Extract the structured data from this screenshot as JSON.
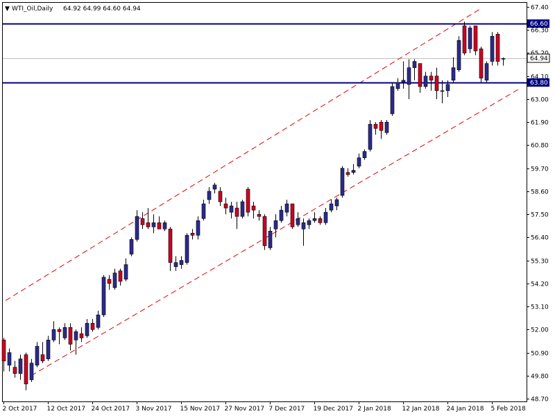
{
  "chart_data": {
    "type": "candlestick",
    "header": {
      "symbol": "WTI_Oil,Daily",
      "ohlc": "64.92 64.99 64.60 64.94"
    },
    "y_ticks": [
      "67.40",
      "66.30",
      "65.20",
      "64.10",
      "63.00",
      "61.90",
      "60.80",
      "59.70",
      "58.60",
      "57.50",
      "56.40",
      "55.30",
      "54.20",
      "53.10",
      "52.00",
      "50.90",
      "49.80",
      "48.70"
    ],
    "y_range": [
      48.7,
      67.4
    ],
    "x_ticks": [
      {
        "label": "2 Oct 2017",
        "bar": 0
      },
      {
        "label": "12 Oct 2017",
        "bar": 8
      },
      {
        "label": "24 Oct 2017",
        "bar": 16
      },
      {
        "label": "3 Nov 2017",
        "bar": 24
      },
      {
        "label": "15 Nov 2017",
        "bar": 32
      },
      {
        "label": "27 Nov 2017",
        "bar": 40
      },
      {
        "label": "7 Dec 2017",
        "bar": 48
      },
      {
        "label": "19 Dec 2017",
        "bar": 56
      },
      {
        "label": "2 Jan 2018",
        "bar": 64
      },
      {
        "label": "12 Jan 2018",
        "bar": 72
      },
      {
        "label": "24 Jan 2018",
        "bar": 80
      },
      {
        "label": "5 Feb 2018",
        "bar": 88
      }
    ],
    "levels": [
      {
        "value": 66.6,
        "label": "66.60",
        "color": "#000080"
      },
      {
        "value": 63.8,
        "label": "63.80",
        "color": "#000080"
      }
    ],
    "last_price": {
      "value": 64.94,
      "label": "64.94"
    },
    "channel": {
      "color": "#e00000",
      "upper": {
        "start": {
          "bar": -1,
          "value": 53.16
        },
        "end": {
          "bar": 86,
          "value": 67.32
        }
      },
      "lower": {
        "start": {
          "bar": 5,
          "value": 49.8
        },
        "end": {
          "bar": 93,
          "value": 63.5
        }
      }
    },
    "colors": {
      "bull": "#2b2b8c",
      "bear": "#cc0022",
      "outline": "#000000"
    },
    "candles": [
      {
        "o": 51.5,
        "h": 51.6,
        "l": 50.0,
        "c": 50.5
      },
      {
        "o": 50.3,
        "h": 51.1,
        "l": 50.0,
        "c": 50.9
      },
      {
        "o": 50.2,
        "h": 50.5,
        "l": 49.7,
        "c": 49.9
      },
      {
        "o": 49.9,
        "h": 50.8,
        "l": 49.6,
        "c": 50.6
      },
      {
        "o": 50.8,
        "h": 50.9,
        "l": 49.1,
        "c": 49.4
      },
      {
        "o": 49.6,
        "h": 50.6,
        "l": 49.5,
        "c": 50.4
      },
      {
        "o": 50.3,
        "h": 51.4,
        "l": 50.2,
        "c": 51.2
      },
      {
        "o": 50.8,
        "h": 51.4,
        "l": 50.4,
        "c": 50.5
      },
      {
        "o": 50.6,
        "h": 51.7,
        "l": 50.5,
        "c": 51.5
      },
      {
        "o": 51.5,
        "h": 52.4,
        "l": 51.4,
        "c": 52.0
      },
      {
        "o": 52.0,
        "h": 52.1,
        "l": 51.3,
        "c": 51.9
      },
      {
        "o": 51.6,
        "h": 52.3,
        "l": 51.5,
        "c": 52.1
      },
      {
        "o": 52.1,
        "h": 52.3,
        "l": 51.0,
        "c": 51.3
      },
      {
        "o": 51.5,
        "h": 52.0,
        "l": 50.8,
        "c": 51.9
      },
      {
        "o": 51.8,
        "h": 52.1,
        "l": 51.4,
        "c": 51.6
      },
      {
        "o": 51.7,
        "h": 52.5,
        "l": 51.6,
        "c": 52.3
      },
      {
        "o": 52.3,
        "h": 52.5,
        "l": 51.9,
        "c": 52.0
      },
      {
        "o": 52.1,
        "h": 52.9,
        "l": 52.0,
        "c": 52.7
      },
      {
        "o": 52.7,
        "h": 54.6,
        "l": 52.6,
        "c": 54.5
      },
      {
        "o": 54.4,
        "h": 54.6,
        "l": 53.9,
        "c": 54.2
      },
      {
        "o": 54.0,
        "h": 54.9,
        "l": 53.9,
        "c": 54.7
      },
      {
        "o": 54.8,
        "h": 54.9,
        "l": 54.1,
        "c": 54.3
      },
      {
        "o": 54.4,
        "h": 55.4,
        "l": 54.3,
        "c": 55.1
      },
      {
        "o": 55.6,
        "h": 56.4,
        "l": 55.5,
        "c": 56.3
      },
      {
        "o": 56.3,
        "h": 57.7,
        "l": 56.2,
        "c": 57.4
      },
      {
        "o": 57.3,
        "h": 57.6,
        "l": 56.8,
        "c": 57.0
      },
      {
        "o": 57.1,
        "h": 57.8,
        "l": 56.8,
        "c": 56.9
      },
      {
        "o": 56.9,
        "h": 57.5,
        "l": 56.6,
        "c": 57.1
      },
      {
        "o": 57.1,
        "h": 57.4,
        "l": 56.8,
        "c": 56.8
      },
      {
        "o": 56.8,
        "h": 57.2,
        "l": 56.7,
        "c": 57.1
      },
      {
        "o": 56.8,
        "h": 56.9,
        "l": 54.8,
        "c": 55.2
      },
      {
        "o": 55.0,
        "h": 55.5,
        "l": 54.8,
        "c": 55.2
      },
      {
        "o": 55.1,
        "h": 55.5,
        "l": 54.9,
        "c": 55.3
      },
      {
        "o": 55.2,
        "h": 56.6,
        "l": 55.1,
        "c": 56.5
      },
      {
        "o": 56.6,
        "h": 56.8,
        "l": 56.3,
        "c": 56.5
      },
      {
        "o": 56.5,
        "h": 57.4,
        "l": 56.3,
        "c": 57.2
      },
      {
        "o": 57.3,
        "h": 58.2,
        "l": 57.2,
        "c": 58.0
      },
      {
        "o": 58.2,
        "h": 58.8,
        "l": 58.0,
        "c": 58.6
      },
      {
        "o": 58.7,
        "h": 59.0,
        "l": 58.5,
        "c": 58.9
      },
      {
        "o": 58.6,
        "h": 58.8,
        "l": 57.9,
        "c": 58.1
      },
      {
        "o": 58.0,
        "h": 58.3,
        "l": 57.5,
        "c": 57.8
      },
      {
        "o": 57.6,
        "h": 58.1,
        "l": 57.3,
        "c": 57.9
      },
      {
        "o": 57.8,
        "h": 58.1,
        "l": 56.8,
        "c": 57.4
      },
      {
        "o": 57.4,
        "h": 58.2,
        "l": 57.3,
        "c": 58.1
      },
      {
        "o": 58.7,
        "h": 58.8,
        "l": 57.4,
        "c": 57.6
      },
      {
        "o": 57.9,
        "h": 58.1,
        "l": 57.3,
        "c": 57.7
      },
      {
        "o": 57.5,
        "h": 57.7,
        "l": 57.2,
        "c": 57.4
      },
      {
        "o": 57.4,
        "h": 57.5,
        "l": 55.8,
        "c": 56.0
      },
      {
        "o": 55.9,
        "h": 56.9,
        "l": 55.8,
        "c": 56.7
      },
      {
        "o": 56.8,
        "h": 57.5,
        "l": 56.4,
        "c": 57.2
      },
      {
        "o": 57.2,
        "h": 57.9,
        "l": 57.1,
        "c": 57.7
      },
      {
        "o": 57.6,
        "h": 58.2,
        "l": 57.4,
        "c": 58.0
      },
      {
        "o": 58.0,
        "h": 58.0,
        "l": 56.8,
        "c": 56.9
      },
      {
        "o": 57.0,
        "h": 57.6,
        "l": 56.9,
        "c": 57.3
      },
      {
        "o": 56.8,
        "h": 57.3,
        "l": 56.0,
        "c": 57.1
      },
      {
        "o": 57.0,
        "h": 57.3,
        "l": 56.8,
        "c": 57.2
      },
      {
        "o": 57.2,
        "h": 57.6,
        "l": 57.1,
        "c": 57.3
      },
      {
        "o": 57.3,
        "h": 57.4,
        "l": 57.0,
        "c": 57.1
      },
      {
        "o": 57.1,
        "h": 57.8,
        "l": 57.0,
        "c": 57.6
      },
      {
        "o": 57.7,
        "h": 58.2,
        "l": 57.6,
        "c": 58.0
      },
      {
        "o": 57.9,
        "h": 58.3,
        "l": 57.7,
        "c": 58.2
      },
      {
        "o": 58.4,
        "h": 59.8,
        "l": 58.3,
        "c": 59.7
      },
      {
        "o": 59.5,
        "h": 59.7,
        "l": 59.3,
        "c": 59.4
      },
      {
        "o": 59.5,
        "h": 59.9,
        "l": 59.4,
        "c": 59.6
      },
      {
        "o": 59.8,
        "h": 60.4,
        "l": 59.7,
        "c": 60.2
      },
      {
        "o": 60.2,
        "h": 60.6,
        "l": 60.1,
        "c": 60.5
      },
      {
        "o": 60.6,
        "h": 62.0,
        "l": 60.5,
        "c": 61.8
      },
      {
        "o": 61.8,
        "h": 61.9,
        "l": 61.3,
        "c": 61.6
      },
      {
        "o": 61.9,
        "h": 62.0,
        "l": 61.1,
        "c": 61.5
      },
      {
        "o": 61.4,
        "h": 62.0,
        "l": 61.3,
        "c": 61.9
      },
      {
        "o": 62.3,
        "h": 63.8,
        "l": 62.2,
        "c": 63.6
      },
      {
        "o": 63.5,
        "h": 64.0,
        "l": 63.4,
        "c": 63.8
      },
      {
        "o": 63.8,
        "h": 64.8,
        "l": 63.5,
        "c": 63.9
      },
      {
        "o": 63.7,
        "h": 64.9,
        "l": 63.0,
        "c": 64.5
      },
      {
        "o": 64.5,
        "h": 64.9,
        "l": 63.9,
        "c": 64.8
      },
      {
        "o": 64.7,
        "h": 64.7,
        "l": 63.3,
        "c": 63.6
      },
      {
        "o": 63.6,
        "h": 64.3,
        "l": 63.5,
        "c": 64.1
      },
      {
        "o": 64.1,
        "h": 64.3,
        "l": 63.4,
        "c": 63.9
      },
      {
        "o": 64.1,
        "h": 64.5,
        "l": 63.0,
        "c": 63.4
      },
      {
        "o": 63.4,
        "h": 63.9,
        "l": 62.8,
        "c": 63.4
      },
      {
        "o": 63.4,
        "h": 63.9,
        "l": 63.1,
        "c": 63.7
      },
      {
        "o": 63.9,
        "h": 65.0,
        "l": 63.8,
        "c": 64.5
      },
      {
        "o": 64.4,
        "h": 66.0,
        "l": 64.3,
        "c": 65.8
      },
      {
        "o": 66.5,
        "h": 66.7,
        "l": 65.1,
        "c": 65.2
      },
      {
        "o": 65.4,
        "h": 66.5,
        "l": 65.2,
        "c": 66.4
      },
      {
        "o": 66.5,
        "h": 66.5,
        "l": 65.1,
        "c": 65.3
      },
      {
        "o": 65.4,
        "h": 65.5,
        "l": 63.8,
        "c": 64.0
      },
      {
        "o": 63.9,
        "h": 64.8,
        "l": 63.8,
        "c": 64.7
      },
      {
        "o": 64.8,
        "h": 66.2,
        "l": 64.6,
        "c": 66.0
      },
      {
        "o": 66.1,
        "h": 66.2,
        "l": 64.6,
        "c": 64.8
      },
      {
        "o": 64.92,
        "h": 64.99,
        "l": 64.6,
        "c": 64.94
      }
    ]
  }
}
